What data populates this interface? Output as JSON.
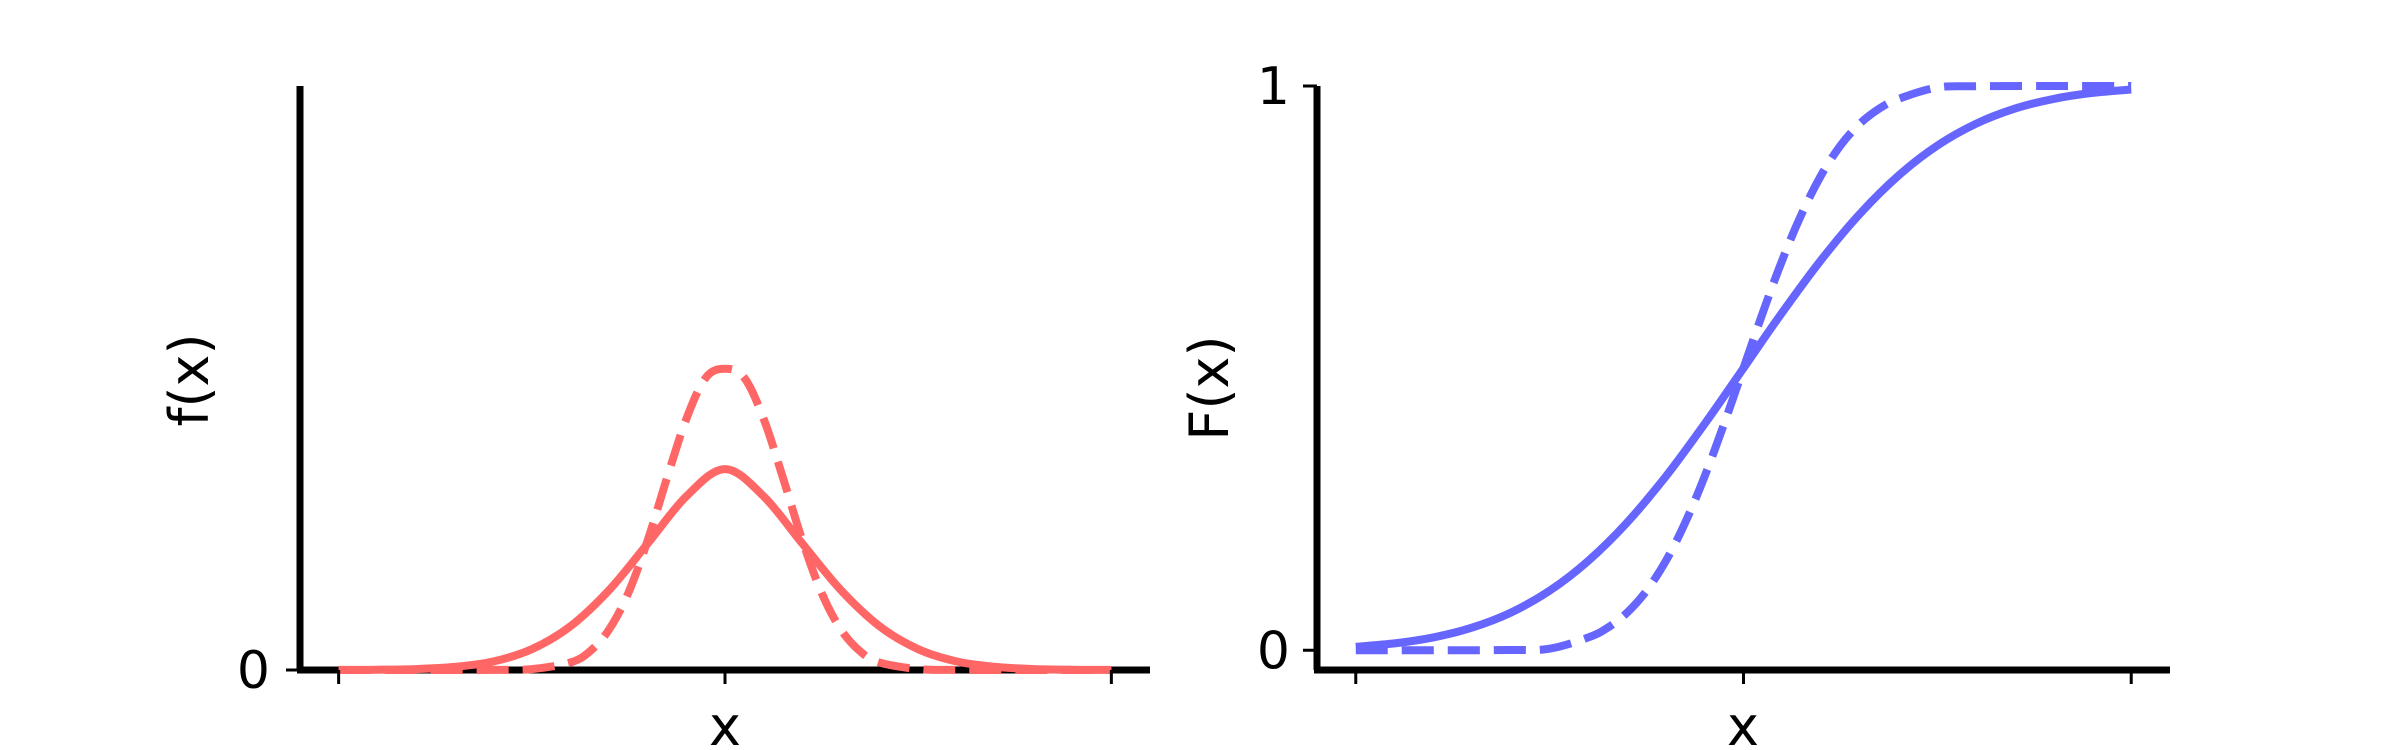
{
  "chart_data": [
    {
      "type": "line",
      "title": "",
      "xlabel": "x",
      "ylabel": "f(x)",
      "xlim": [
        -5.5,
        5.5
      ],
      "ylim": [
        0,
        0.82
      ],
      "yticks": [
        {
          "value": 0,
          "label": "0"
        }
      ],
      "xticks": [
        -5,
        0,
        5
      ],
      "grid": false,
      "legend": "none",
      "color": "#ff6666",
      "series": [
        {
          "style": "solid",
          "x": [
            -5,
            -4.5,
            -4,
            -3.5,
            -3,
            -2.5,
            -2,
            -1.5,
            -1,
            -0.5,
            0,
            0.5,
            1,
            1.5,
            2,
            2.5,
            3,
            3.5,
            4,
            4.5,
            5
          ],
          "y": [
            0.0001,
            0.0004,
            0.0013,
            0.0044,
            0.012,
            0.0292,
            0.0615,
            0.1122,
            0.1776,
            0.2439,
            0.2821,
            0.2439,
            0.1776,
            0.1122,
            0.0615,
            0.0292,
            0.012,
            0.0044,
            0.0013,
            0.0004,
            0.0001
          ]
        },
        {
          "style": "dashed",
          "x": [
            -5,
            -4,
            -3,
            -2.5,
            -2,
            -1.75,
            -1.5,
            -1.25,
            -1,
            -0.75,
            -0.5,
            -0.25,
            0,
            0.25,
            0.5,
            0.75,
            1,
            1.25,
            1.5,
            1.75,
            2,
            2.5,
            3,
            4,
            5
          ],
          "y": [
            0,
            0,
            0.0001,
            0.0013,
            0.0106,
            0.0261,
            0.0568,
            0.1084,
            0.1823,
            0.2697,
            0.3527,
            0.4103,
            0.4231,
            0.4103,
            0.3527,
            0.2697,
            0.1823,
            0.1084,
            0.0568,
            0.0261,
            0.0106,
            0.0013,
            0.0001,
            0,
            0
          ]
        }
      ]
    },
    {
      "type": "line",
      "title": "",
      "xlabel": "x",
      "ylabel": "F(x)",
      "xlim": [
        -5.5,
        5.5
      ],
      "ylim": [
        -0.035,
        1.0
      ],
      "yticks": [
        {
          "value": 0,
          "label": "0"
        },
        {
          "value": 1,
          "label": "1"
        }
      ],
      "xticks": [
        -5,
        0,
        5
      ],
      "grid": false,
      "legend": "none",
      "color": "#6666ff",
      "series": [
        {
          "style": "solid",
          "x": [
            -5,
            -4.5,
            -4,
            -3.5,
            -3,
            -2.5,
            -2,
            -1.5,
            -1,
            -0.5,
            0,
            0.5,
            1,
            1.5,
            2,
            2.5,
            3,
            3.5,
            4,
            4.5,
            5
          ],
          "y": [
            0.0062,
            0.0122,
            0.0228,
            0.0401,
            0.0668,
            0.1056,
            0.1587,
            0.2266,
            0.3085,
            0.4013,
            0.5,
            0.5987,
            0.6915,
            0.7734,
            0.8413,
            0.8944,
            0.9332,
            0.9599,
            0.9772,
            0.9878,
            0.9938
          ]
        },
        {
          "style": "dashed",
          "x": [
            -5,
            -4,
            -3,
            -2.5,
            -2,
            -1.75,
            -1.5,
            -1.25,
            -1,
            -0.75,
            -0.5,
            -0.25,
            0,
            0.25,
            0.5,
            0.75,
            1,
            1.25,
            1.5,
            1.75,
            2,
            2.5,
            3,
            4,
            5
          ],
          "y": [
            0,
            0,
            0.0004,
            0.0027,
            0.0228,
            0.0401,
            0.0668,
            0.1056,
            0.1587,
            0.2266,
            0.3085,
            0.4013,
            0.5,
            0.5987,
            0.6915,
            0.7734,
            0.8413,
            0.8944,
            0.9332,
            0.9599,
            0.9772,
            0.9973,
            0.9996,
            1,
            1
          ]
        }
      ]
    }
  ]
}
